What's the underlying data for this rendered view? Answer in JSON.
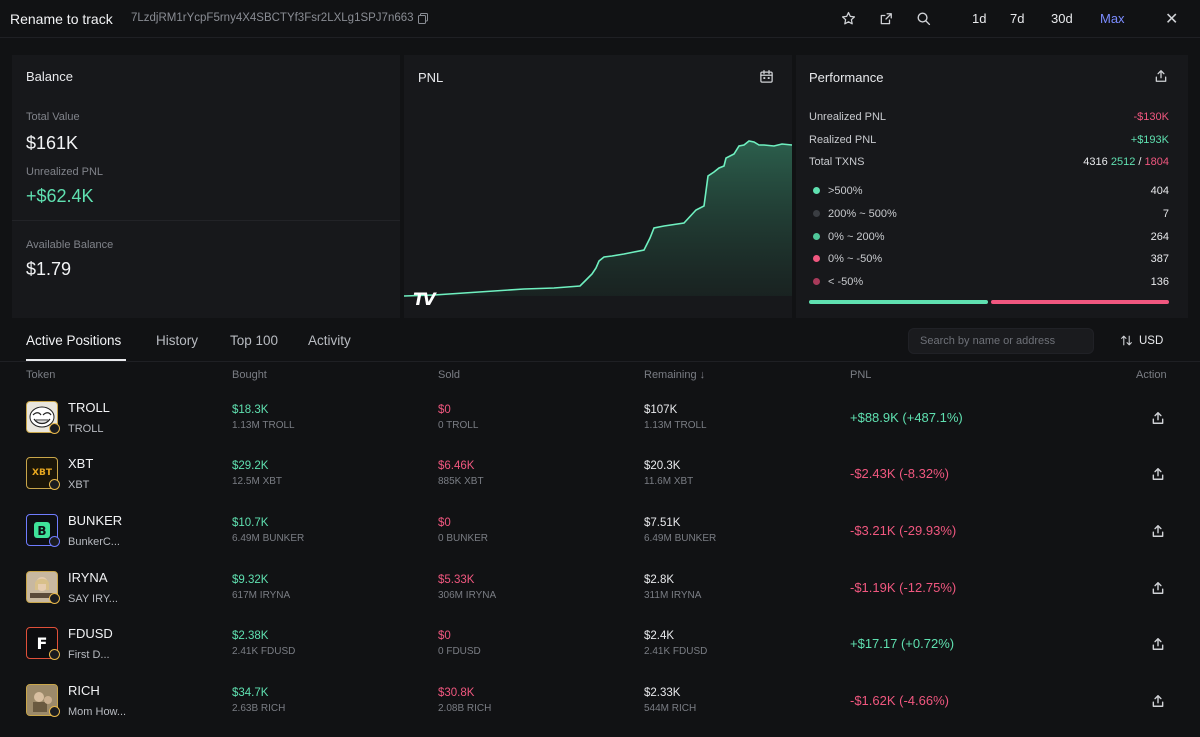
{
  "header": {
    "title": "Rename to track",
    "address": "7LzdjRM1rYcpF5rny4X4SBCTYf3Fsr2LXLg1SPJ7n663",
    "ranges": [
      "1d",
      "7d",
      "30d",
      "Max"
    ],
    "active_range": "Max"
  },
  "balance": {
    "title": "Balance",
    "total_value_label": "Total Value",
    "total_value": "$161K",
    "unrealized_label": "Unrealized PNL",
    "unrealized_value": "+$62.4K",
    "available_label": "Available Balance",
    "available_value": "$1.79"
  },
  "pnl_panel": {
    "title": "PNL",
    "logo_text": "TV"
  },
  "performance": {
    "title": "Performance",
    "unrealized_label": "Unrealized PNL",
    "unrealized_value": "-$130K",
    "realized_label": "Realized PNL",
    "realized_value": "+$193K",
    "txns_label": "Total TXNS",
    "txns_total": "4316",
    "txns_buy": "2512",
    "txns_sep": "/",
    "txns_sell": "1804",
    "buckets": [
      {
        "label": ">500%",
        "count": "404",
        "color": "#5fe0b0"
      },
      {
        "label": "200% ~ 500%",
        "count": "7",
        "color": "#3a3d42"
      },
      {
        "label": "0% ~ 200%",
        "count": "264",
        "color": "#4fc79a"
      },
      {
        "label": "0% ~ -50%",
        "count": "387",
        "color": "#f0577f"
      },
      {
        "label": "< -50%",
        "count": "136",
        "color": "#a83a5a"
      }
    ],
    "win_share": 0.5
  },
  "tabs": [
    "Active Positions",
    "History",
    "Top 100",
    "Activity"
  ],
  "search": {
    "placeholder": "Search by name or address"
  },
  "currency": "USD",
  "table": {
    "headers": {
      "token": "Token",
      "bought": "Bought",
      "sold": "Sold",
      "remaining": "Remaining ↓",
      "pnl": "PNL",
      "action": "Action"
    },
    "rows": [
      {
        "symbol": "TROLL",
        "name": "TROLL",
        "bought": "$18.3K",
        "bought_sub": "1.13M TROLL",
        "sold": "$0",
        "sold_sub": "0 TROLL",
        "remaining": "$107K",
        "remaining_sub": "1.13M TROLL",
        "pnl": "+$88.9K (+487.1%)",
        "pnl_sign": "pos"
      },
      {
        "symbol": "XBT",
        "name": "XBT",
        "bought": "$29.2K",
        "bought_sub": "12.5M XBT",
        "sold": "$6.46K",
        "sold_sub": "885K XBT",
        "remaining": "$20.3K",
        "remaining_sub": "11.6M XBT",
        "pnl": "-$2.43K (-8.32%)",
        "pnl_sign": "neg"
      },
      {
        "symbol": "BUNKER",
        "name": "BunkerC...",
        "bought": "$10.7K",
        "bought_sub": "6.49M BUNKER",
        "sold": "$0",
        "sold_sub": "0 BUNKER",
        "remaining": "$7.51K",
        "remaining_sub": "6.49M BUNKER",
        "pnl": "-$3.21K (-29.93%)",
        "pnl_sign": "neg"
      },
      {
        "symbol": "IRYNA",
        "name": "SAY IRY...",
        "bought": "$9.32K",
        "bought_sub": "617M IRYNA",
        "sold": "$5.33K",
        "sold_sub": "306M IRYNA",
        "remaining": "$2.8K",
        "remaining_sub": "311M IRYNA",
        "pnl": "-$1.19K (-12.75%)",
        "pnl_sign": "neg"
      },
      {
        "symbol": "FDUSD",
        "name": "First D...",
        "bought": "$2.38K",
        "bought_sub": "2.41K FDUSD",
        "sold": "$0",
        "sold_sub": "0 FDUSD",
        "remaining": "$2.4K",
        "remaining_sub": "2.41K FDUSD",
        "pnl": "+$17.17 (+0.72%)",
        "pnl_sign": "pos"
      },
      {
        "symbol": "RICH",
        "name": "Mom How...",
        "bought": "$34.7K",
        "bought_sub": "2.63B RICH",
        "sold": "$30.8K",
        "sold_sub": "2.08B RICH",
        "remaining": "$2.33K",
        "remaining_sub": "544M RICH",
        "pnl": "-$1.62K (-4.66%)",
        "pnl_sign": "neg"
      }
    ]
  },
  "colors": {
    "positive": "#5fe0b0",
    "negative": "#f0577f",
    "accent": "#7b8cff"
  }
}
